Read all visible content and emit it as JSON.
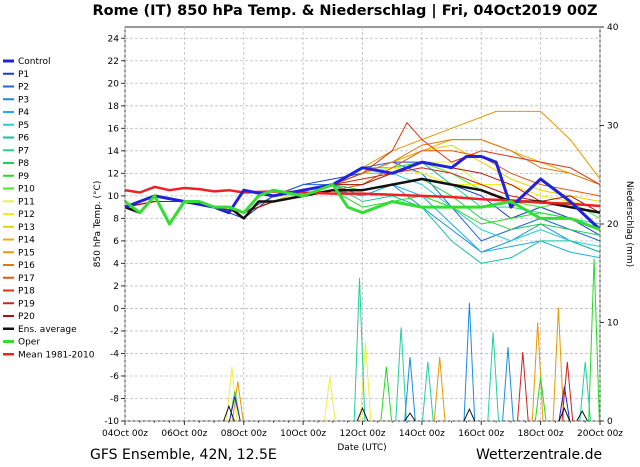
{
  "chart_data": {
    "type": "line",
    "title": "Rome  (IT)  850 hPa Temp. & Niederschlag | Fri, 04Oct2019 00Z",
    "footer_left": "GFS Ensemble, 42N, 12.5E",
    "footer_right": "Wetterzentrale.de",
    "xlabel": "Date (UTC)",
    "ylabel": "850 hPa Temp. (°C)",
    "y2label": "Niederschlag (mm)",
    "xlim": [
      0,
      16
    ],
    "ylim": [
      -10,
      25
    ],
    "y2lim": [
      0,
      40
    ],
    "x_ticks": [
      {
        "x": 0,
        "label": "04Oct 00z"
      },
      {
        "x": 2,
        "label": "06Oct 00z"
      },
      {
        "x": 4,
        "label": "08Oct 00z"
      },
      {
        "x": 6,
        "label": "10Oct 00z"
      },
      {
        "x": 8,
        "label": "12Oct 00z"
      },
      {
        "x": 10,
        "label": "14Oct 00z"
      },
      {
        "x": 12,
        "label": "16Oct 00z"
      },
      {
        "x": 14,
        "label": "18Oct 00z"
      },
      {
        "x": 16,
        "label": "20Oct 00z"
      }
    ],
    "y_ticks": [
      "24",
      "22",
      "20",
      "18",
      "16",
      "14",
      "12",
      "10",
      "8",
      "6",
      "4",
      "2",
      "0",
      "-2",
      "-4",
      "-6",
      "-8",
      "-10"
    ],
    "y_tick_values": [
      24,
      22,
      20,
      18,
      16,
      14,
      12,
      10,
      8,
      6,
      4,
      2,
      0,
      -2,
      -4,
      -6,
      -8,
      -10
    ],
    "y2_ticks": [
      {
        "value": 40,
        "label": "40"
      },
      {
        "value": 30,
        "label": "30"
      },
      {
        "value": 20,
        "label": "20"
      },
      {
        "value": 10,
        "label": "10"
      },
      {
        "value": 0,
        "label": "0"
      }
    ],
    "grid": true,
    "legend_position": "left",
    "series": [
      {
        "name": "Control",
        "color": "#2222dd",
        "width": 3,
        "x": [
          0,
          1,
          2,
          3,
          3.5,
          4,
          5,
          6,
          7,
          8,
          9,
          10,
          11,
          11.5,
          12,
          12.5,
          13,
          14,
          15,
          16
        ],
        "y": [
          9,
          10,
          9.5,
          9,
          8.5,
          10.5,
          10,
          10.5,
          11,
          12.5,
          12,
          13,
          12.5,
          13.5,
          13.5,
          13,
          9,
          11.5,
          9.5,
          7
        ]
      },
      {
        "name": "P1",
        "color": "#1a3ecc",
        "width": 1,
        "x": [
          0,
          1,
          2,
          3,
          4,
          5,
          6,
          7,
          8,
          9,
          10,
          11,
          12,
          13,
          14,
          15,
          16
        ],
        "y": [
          9,
          9.5,
          9.5,
          9,
          8,
          10,
          11,
          11.5,
          12,
          13,
          13,
          11,
          10,
          8,
          9,
          8,
          6.5
        ]
      },
      {
        "name": "P2",
        "color": "#1f66d6",
        "width": 1,
        "x": [
          0,
          1,
          2,
          3,
          4,
          5,
          6,
          7,
          8,
          9,
          10,
          11,
          12,
          13,
          14,
          15,
          16
        ],
        "y": [
          9,
          9.5,
          9.5,
          9,
          8.5,
          10,
          11,
          11,
          12.5,
          13,
          12,
          9,
          6,
          7,
          8,
          7,
          6
        ]
      },
      {
        "name": "P3",
        "color": "#1a8ce0",
        "width": 1,
        "x": [
          0,
          1,
          2,
          3,
          4,
          5,
          6,
          7,
          8,
          9,
          10,
          11,
          12,
          13,
          14,
          15,
          16
        ],
        "y": [
          9,
          9.5,
          9.5,
          9,
          8.5,
          9.5,
          10,
          10.5,
          10,
          11,
          9,
          7,
          5,
          6,
          7.5,
          6,
          5
        ]
      },
      {
        "name": "P4",
        "color": "#18b0e8",
        "width": 1,
        "x": [
          0,
          1,
          2,
          3,
          4,
          5,
          6,
          7,
          8,
          9,
          10,
          11,
          12,
          13,
          14,
          15,
          16
        ],
        "y": [
          9,
          9.5,
          9.5,
          9,
          8.5,
          9.5,
          10,
          11,
          10,
          11,
          10,
          7.5,
          5,
          5.5,
          6,
          5,
          4.5
        ]
      },
      {
        "name": "P5",
        "color": "#20d0d0",
        "width": 1,
        "x": [
          0,
          1,
          2,
          3,
          4,
          5,
          6,
          7,
          8,
          9,
          10,
          11,
          12,
          13,
          14,
          15,
          16
        ],
        "y": [
          9,
          9.5,
          9.5,
          9,
          8.5,
          9.5,
          10.5,
          11,
          12,
          12,
          11,
          9,
          7,
          6,
          7,
          6,
          5.5
        ]
      },
      {
        "name": "P6",
        "color": "#18c0a0",
        "width": 1,
        "x": [
          0,
          1,
          2,
          3,
          4,
          5,
          6,
          7,
          8,
          9,
          10,
          11,
          12,
          13,
          14,
          15,
          16
        ],
        "y": [
          9,
          9.5,
          9.5,
          9,
          8.5,
          9.5,
          10,
          11,
          9.5,
          10,
          9,
          6,
          4,
          4.5,
          6,
          6,
          5
        ]
      },
      {
        "name": "P7",
        "color": "#20d888",
        "width": 1,
        "x": [
          0,
          1,
          2,
          3,
          4,
          5,
          6,
          7,
          8,
          9,
          10,
          11,
          12,
          13,
          14,
          15,
          16
        ],
        "y": [
          9,
          9.5,
          9.5,
          9,
          8.5,
          9.5,
          10.5,
          11,
          12.5,
          12.5,
          13,
          11,
          9,
          9,
          8.5,
          8,
          7.5
        ]
      },
      {
        "name": "P8",
        "color": "#22cc55",
        "width": 1,
        "x": [
          0,
          1,
          2,
          3,
          4,
          5,
          6,
          7,
          8,
          9,
          10,
          11,
          12,
          13,
          14,
          15,
          16
        ],
        "y": [
          9,
          9.5,
          9.5,
          9,
          8.5,
          9.5,
          10,
          11,
          10.5,
          11,
          11.5,
          10,
          8,
          7,
          7.5,
          7,
          6.5
        ]
      },
      {
        "name": "P9",
        "color": "#22dd22",
        "width": 1,
        "x": [
          0,
          1,
          2,
          3,
          4,
          5,
          6,
          7,
          8,
          9,
          10,
          11,
          12,
          13,
          14,
          15,
          16
        ],
        "y": [
          9,
          9.5,
          9.5,
          9,
          8.5,
          9.5,
          10,
          10.5,
          9,
          9.5,
          10,
          9,
          7.5,
          8,
          8.5,
          8,
          7
        ]
      },
      {
        "name": "P10",
        "color": "#44ee22",
        "width": 1,
        "x": [
          0,
          1,
          2,
          3,
          4,
          5,
          6,
          7,
          8,
          9,
          10,
          11,
          12,
          13,
          14,
          15,
          16
        ],
        "y": [
          9,
          9.5,
          9.5,
          9,
          8.5,
          9.5,
          10,
          11,
          11,
          12.5,
          13,
          12,
          10.5,
          9.5,
          9,
          9.5,
          8
        ]
      },
      {
        "name": "P11",
        "color": "#eeee44",
        "width": 1,
        "x": [
          0,
          1,
          2,
          3,
          4,
          5,
          6,
          7,
          8,
          9,
          10,
          11,
          12,
          13,
          14,
          15,
          16
        ],
        "y": [
          9,
          9.5,
          9.5,
          9,
          8.5,
          9.5,
          10.5,
          11,
          11.5,
          12,
          13,
          13,
          11,
          10,
          9.5,
          9,
          8.5
        ]
      },
      {
        "name": "P12",
        "color": "#f0f000",
        "width": 1,
        "x": [
          0,
          1,
          2,
          3,
          4,
          5,
          6,
          7,
          8,
          9,
          10,
          11,
          12,
          13,
          14,
          15,
          16
        ],
        "y": [
          9,
          9.5,
          9.5,
          9,
          8.5,
          9.5,
          10,
          11,
          12,
          12.5,
          12,
          11,
          11,
          11,
          10,
          9.5,
          9
        ]
      },
      {
        "name": "P13",
        "color": "#e8d000",
        "width": 1,
        "x": [
          0,
          1,
          2,
          3,
          4,
          5,
          6,
          7,
          8,
          9,
          10,
          11,
          12,
          13,
          14,
          15,
          16
        ],
        "y": [
          9,
          9.5,
          9.5,
          9,
          8.5,
          9.5,
          10.5,
          11,
          12,
          13,
          14,
          14.5,
          13,
          11.5,
          10.5,
          10,
          9.5
        ]
      },
      {
        "name": "P14",
        "color": "#e8b000",
        "width": 1,
        "x": [
          0,
          1,
          2,
          3,
          4,
          5,
          6,
          7,
          8,
          9,
          10,
          11,
          12,
          13,
          14,
          15,
          16
        ],
        "y": [
          9,
          9.5,
          9.5,
          9,
          8.5,
          9.5,
          10,
          11,
          12,
          13,
          14,
          15,
          15,
          14,
          13,
          12,
          11
        ]
      },
      {
        "name": "P15",
        "color": "#e89800",
        "width": 1,
        "x": [
          0,
          1,
          2,
          3,
          4,
          5,
          6,
          7,
          8,
          9,
          10,
          11,
          12,
          12.5,
          13,
          14,
          15,
          16
        ],
        "y": [
          9,
          9.5,
          9.5,
          9,
          8.5,
          9.5,
          10,
          11,
          12.5,
          14,
          15,
          16,
          17,
          17.5,
          17.5,
          17.5,
          15,
          11.5
        ]
      },
      {
        "name": "P16",
        "color": "#e07a10",
        "width": 1,
        "x": [
          0,
          1,
          2,
          3,
          4,
          5,
          6,
          7,
          8,
          9,
          10,
          11,
          12,
          13,
          14,
          15,
          16
        ],
        "y": [
          9,
          9.5,
          9.5,
          9,
          8.5,
          9.5,
          10,
          11,
          12,
          13,
          14.5,
          15,
          15,
          14,
          12.5,
          12,
          11
        ]
      },
      {
        "name": "P17",
        "color": "#e05a10",
        "width": 1,
        "x": [
          0,
          1,
          2,
          3,
          4,
          5,
          6,
          7,
          8,
          9,
          10,
          11,
          12,
          13,
          14,
          15,
          16
        ],
        "y": [
          9,
          9.5,
          9.5,
          9,
          8.5,
          9.5,
          10,
          10.5,
          11,
          12.5,
          14,
          14,
          13.5,
          12,
          11,
          10.5,
          10
        ]
      },
      {
        "name": "P18",
        "color": "#dd3311",
        "width": 1,
        "x": [
          0,
          1,
          2,
          3,
          4,
          5,
          6,
          7,
          8,
          9,
          9.5,
          10,
          11,
          12,
          13,
          14,
          15,
          16
        ],
        "y": [
          9,
          9.5,
          9.5,
          9,
          8.5,
          9.5,
          10,
          11,
          12,
          14,
          16.5,
          15,
          13,
          14,
          13.5,
          13,
          12.5,
          11
        ]
      },
      {
        "name": "P19",
        "color": "#cc2222",
        "width": 1,
        "x": [
          0,
          1,
          2,
          3,
          4,
          5,
          6,
          7,
          8,
          9,
          10,
          11,
          12,
          13,
          14,
          15,
          16
        ],
        "y": [
          9,
          9.5,
          9.5,
          9,
          8.5,
          9.5,
          10,
          11,
          11.5,
          12,
          12.5,
          12,
          11,
          10,
          9.5,
          9,
          8.5
        ]
      },
      {
        "name": "P20",
        "color": "#aa1111",
        "width": 1,
        "x": [
          0,
          1,
          2,
          3,
          4,
          5,
          6,
          7,
          8,
          9,
          10,
          11,
          12,
          13,
          14,
          15,
          16
        ],
        "y": [
          9,
          9.5,
          9.5,
          9,
          8.5,
          9.5,
          10,
          11,
          11,
          12,
          13,
          12.5,
          12,
          11,
          9.5,
          10,
          8.5
        ]
      },
      {
        "name": "Ens. average",
        "color": "#111111",
        "width": 2.5,
        "x": [
          0,
          0.5,
          1,
          1.5,
          2,
          2.5,
          3,
          3.5,
          4,
          4.5,
          5,
          6,
          7,
          8,
          9,
          10,
          11,
          12,
          13,
          14,
          15,
          16
        ],
        "y": [
          9,
          8.5,
          10,
          7.5,
          9.5,
          9.5,
          9,
          9,
          8,
          9.5,
          9.5,
          10,
          10.5,
          10.5,
          11,
          11.5,
          11,
          10.5,
          9.5,
          9.5,
          9,
          8.5
        ]
      },
      {
        "name": "Oper",
        "color": "#33dd33",
        "width": 3,
        "x": [
          0,
          0.5,
          1,
          1.5,
          2,
          2.5,
          3,
          3.5,
          4,
          4.5,
          5,
          6,
          7,
          7.5,
          8,
          9,
          10,
          11,
          12,
          13,
          14,
          15,
          16
        ],
        "y": [
          9.5,
          8.5,
          10,
          7.5,
          9.5,
          9.5,
          9,
          9,
          8.5,
          10,
          10.5,
          10,
          11,
          9,
          8.5,
          9.5,
          9,
          9,
          9,
          9.5,
          8,
          8,
          7
        ]
      },
      {
        "name": "Mean 1981-2010",
        "color": "#ee2222",
        "width": 2.5,
        "x": [
          0,
          0.5,
          1,
          1.5,
          2,
          2.5,
          3,
          3.5,
          4,
          5,
          6,
          7,
          8,
          9,
          10,
          11,
          12,
          13,
          14,
          15,
          16
        ],
        "y": [
          10.5,
          10.3,
          10.8,
          10.5,
          10.7,
          10.6,
          10.4,
          10.5,
          10.3,
          10.4,
          10.3,
          10.2,
          10.2,
          10.1,
          10,
          9.9,
          9.7,
          9.6,
          9.4,
          9.3,
          9.1
        ]
      }
    ],
    "precipitation": [
      {
        "color": "#eeee44",
        "peaks": [
          [
            3.6,
            5.5
          ],
          [
            6.9,
            4.5
          ],
          [
            8.1,
            8.0
          ]
        ]
      },
      {
        "color": "#20d0a0",
        "peaks": [
          [
            7.9,
            14.5
          ],
          [
            9.3,
            9.5
          ],
          [
            10.2,
            6.0
          ],
          [
            12.4,
            9.0
          ],
          [
            15.5,
            6.0
          ]
        ]
      },
      {
        "color": "#1a8ce0",
        "peaks": [
          [
            9.6,
            6.5
          ],
          [
            11.6,
            12.0
          ],
          [
            12.9,
            7.5
          ]
        ]
      },
      {
        "color": "#e89800",
        "peaks": [
          [
            3.8,
            4.0
          ],
          [
            10.6,
            6.5
          ],
          [
            13.9,
            10.0
          ],
          [
            14.6,
            11.5
          ]
        ]
      },
      {
        "color": "#22dd22",
        "peaks": [
          [
            3.7,
            3.0
          ],
          [
            8.8,
            5.5
          ],
          [
            15.8,
            16.5
          ],
          [
            14.0,
            4.5
          ]
        ]
      },
      {
        "color": "#cc2222",
        "peaks": [
          [
            13.4,
            7.0
          ],
          [
            14.9,
            6.0
          ]
        ]
      },
      {
        "color": "#2222dd",
        "peaks": [
          [
            3.7,
            2.5
          ],
          [
            14.8,
            3.5
          ]
        ]
      },
      {
        "color": "#111111",
        "peaks": [
          [
            3.5,
            1.5
          ],
          [
            8.0,
            1.3
          ],
          [
            9.6,
            0.8
          ],
          [
            11.6,
            1.2
          ],
          [
            14.8,
            1.3
          ],
          [
            15.4,
            1.0
          ]
        ]
      }
    ]
  }
}
